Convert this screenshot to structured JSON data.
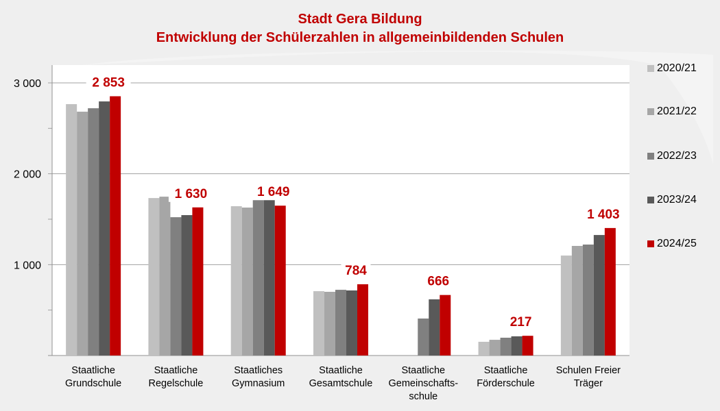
{
  "title_line1": "Stadt Gera Bildung",
  "title_line2": "Entwicklung der Schülerzahlen in allgemeinbildenden Schulen",
  "chart_data": {
    "type": "bar",
    "title": "Stadt Gera Bildung — Entwicklung der Schülerzahlen in allgemeinbildenden Schulen",
    "xlabel": "",
    "ylabel": "",
    "ylim": [
      0,
      3250
    ],
    "yticks": [
      1000,
      2000,
      3000
    ],
    "ytick_labels": [
      "1 000",
      "2 000",
      "3 000"
    ],
    "minor_ticks": [
      500,
      1500,
      2500
    ],
    "grid": true,
    "legend_position": "right",
    "categories": [
      [
        "Staatliche",
        "Grundschule"
      ],
      [
        "Staatliche",
        "Regelschule"
      ],
      [
        "Staatliches",
        "Gymnasium"
      ],
      [
        "Staatliche",
        "Gesamtschule"
      ],
      [
        "Staatliche",
        "Gemeinschafts-",
        "schule"
      ],
      [
        "Staatliche",
        "Förderschule"
      ],
      [
        "Schulen Freier",
        "Träger"
      ]
    ],
    "series": [
      {
        "name": "2020/21",
        "color": "#c0c0c0",
        "values": [
          2766,
          1733,
          1643,
          708,
          null,
          151,
          1100
        ]
      },
      {
        "name": "2021/22",
        "color": "#a6a6a6",
        "values": [
          2683,
          1748,
          1628,
          701,
          null,
          173,
          1206
        ]
      },
      {
        "name": "2022/23",
        "color": "#808080",
        "values": [
          2721,
          1522,
          1748,
          723,
          407,
          196,
          1221
        ]
      },
      {
        "name": "2023/24",
        "color": "#595959",
        "values": [
          2796,
          1545,
          1718,
          716,
          618,
          211,
          1326
        ]
      },
      {
        "name": "2024/25",
        "color": "#c00000",
        "values": [
          2853,
          1630,
          1649,
          784,
          666,
          217,
          1403
        ]
      }
    ],
    "data_labels": {
      "series": "2024/25",
      "labels": [
        "2 853",
        "1 630",
        "1 649",
        "784",
        "666",
        "217",
        "1 403"
      ]
    }
  }
}
